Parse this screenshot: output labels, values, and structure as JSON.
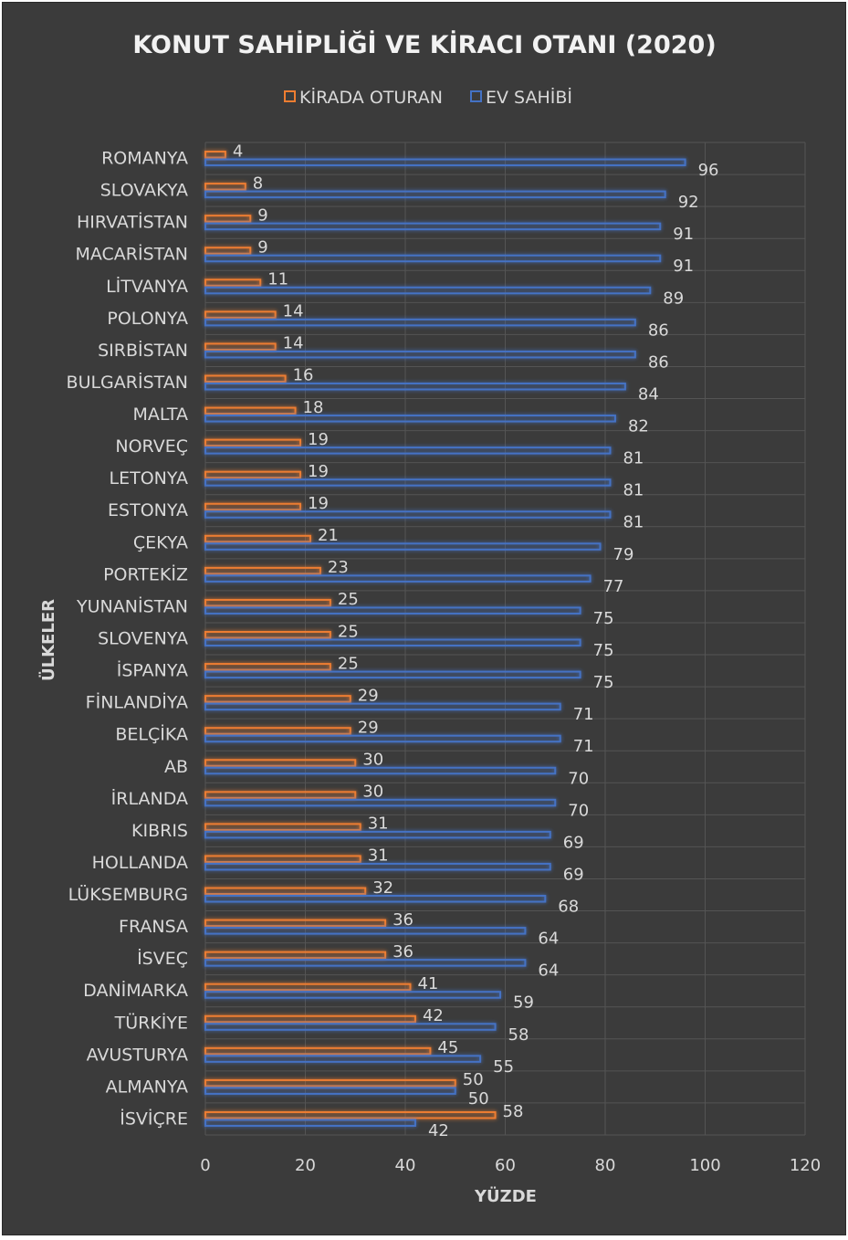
{
  "chart_data": {
    "type": "bar",
    "orientation": "horizontal",
    "title": "KONUT SAHİPLİĞİ VE KİRACI OTANI (2020)",
    "xlabel": "YÜZDE",
    "ylabel": "ÜLKELER",
    "xlim": [
      0,
      120
    ],
    "xticks": [
      "0",
      "20",
      "40",
      "60",
      "80",
      "100",
      "120"
    ],
    "grid": true,
    "legend_position": "top",
    "categories": [
      "ROMANYA",
      "SLOVAKYA",
      "HIRVATİSTAN",
      "MACARİSTAN",
      "LİTVANYA",
      "POLONYA",
      "SIRBİSTAN",
      "BULGARİSTAN",
      "MALTA",
      "NORVEÇ",
      "LETONYA",
      "ESTONYA",
      "ÇEKYA",
      "PORTEKİZ",
      "YUNANİSTAN",
      "SLOVENYA",
      "İSPANYA",
      "FİNLANDİYA",
      "BELÇİKA",
      "AB",
      "İRLANDA",
      "KIBRIS",
      "HOLLANDA",
      "LÜKSEMBURG",
      "FRANSA",
      "İSVEÇ",
      "DANİMARKA",
      "TÜRKİYE",
      "AVUSTURYA",
      "ALMANYA",
      "İSVİÇRE"
    ],
    "series": [
      {
        "name": "KİRADA OTURAN",
        "color": "#ed7d31",
        "values": [
          4,
          8,
          9,
          9,
          11,
          14,
          14,
          16,
          18,
          19,
          19,
          19,
          21,
          23,
          25,
          25,
          25,
          29,
          29,
          30,
          30,
          31,
          31,
          32,
          36,
          36,
          41,
          42,
          45,
          50,
          58
        ]
      },
      {
        "name": "EV SAHİBİ",
        "color": "#4472c4",
        "values": [
          96,
          92,
          91,
          91,
          89,
          86,
          86,
          84,
          82,
          81,
          81,
          81,
          79,
          77,
          75,
          75,
          75,
          71,
          71,
          70,
          70,
          69,
          69,
          68,
          64,
          64,
          59,
          58,
          55,
          50,
          42
        ]
      }
    ]
  }
}
